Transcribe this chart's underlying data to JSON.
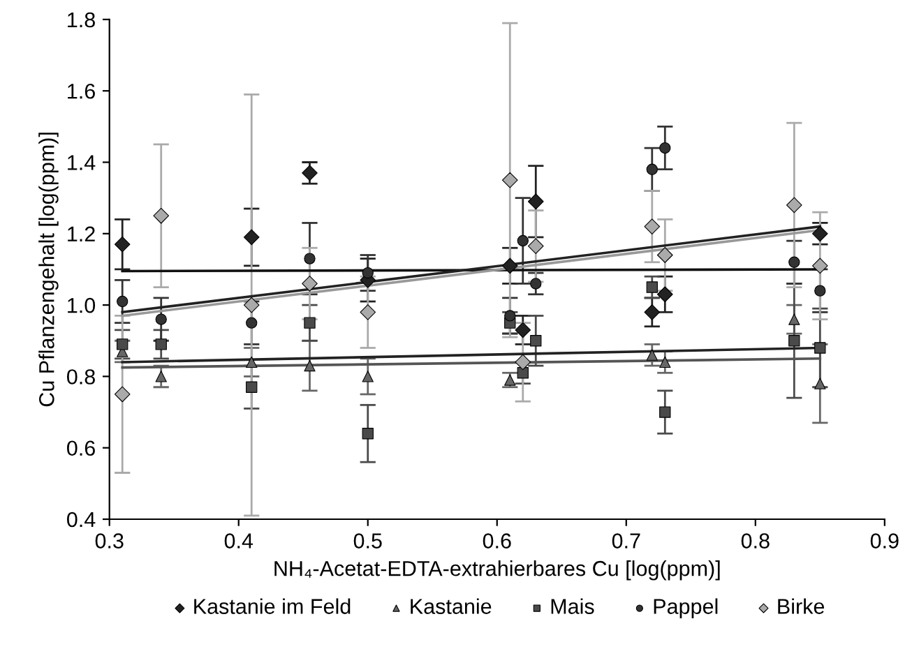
{
  "chart_data": {
    "type": "scatter",
    "xlabel": "NH₄-Acetat-EDTA-extrahierbares Cu [log(ppm)]",
    "ylabel": "Cu Pflanzengehalt [log(ppm)]",
    "xlim": [
      0.3,
      0.9
    ],
    "ylim": [
      0.4,
      1.8
    ],
    "xticks": [
      0.3,
      0.4,
      0.5,
      0.6,
      0.7,
      0.8,
      0.9
    ],
    "yticks": [
      {
        "value": 0.4,
        "label": "0.4"
      },
      {
        "value": 0.6,
        "label": "0.6"
      },
      {
        "value": 0.8,
        "label": "0.8"
      },
      {
        "value": 1.0,
        "label": "1.0"
      },
      {
        "value": 1.2,
        "label": "1.2"
      },
      {
        "value": 1.4,
        "label": "1.4"
      },
      {
        "value": 1.6,
        "label": "1.6"
      },
      {
        "value": 1.8,
        "label": "1.8"
      }
    ],
    "grid": false,
    "legend": "bottom",
    "series": [
      {
        "name": "Kastanie im Feld",
        "color": "#222222",
        "marker": "diamond",
        "x": [
          0.31,
          0.41,
          0.455,
          0.5,
          0.61,
          0.62,
          0.63,
          0.72,
          0.73,
          0.85
        ],
        "values": [
          1.17,
          1.19,
          1.37,
          1.07,
          1.11,
          0.93,
          1.29,
          0.98,
          1.03,
          1.2
        ],
        "errors": [
          0.07,
          0.08,
          0.03,
          0.06,
          0.05,
          0.04,
          0.1,
          0.04,
          0.05,
          0.03
        ]
      },
      {
        "name": "Kastanie",
        "color": "#666666",
        "marker": "triangle",
        "x": [
          0.31,
          0.34,
          0.41,
          0.455,
          0.5,
          0.61,
          0.72,
          0.73,
          0.83,
          0.85
        ],
        "values": [
          0.87,
          0.8,
          0.84,
          0.83,
          0.8,
          0.79,
          0.86,
          0.84,
          0.96,
          0.78
        ],
        "errors": [
          0.03,
          0.03,
          0.04,
          0.07,
          0.05,
          0.02,
          0.03,
          0.03,
          0.04,
          0.11
        ]
      },
      {
        "name": "Mais",
        "color": "#4a4a4a",
        "marker": "square",
        "x": [
          0.31,
          0.34,
          0.41,
          0.455,
          0.5,
          0.61,
          0.62,
          0.63,
          0.72,
          0.73,
          0.83,
          0.85
        ],
        "values": [
          0.89,
          0.89,
          0.77,
          0.95,
          0.64,
          0.95,
          0.81,
          0.9,
          1.05,
          0.7,
          0.9,
          0.88
        ],
        "errors": [
          0.04,
          0.04,
          0.06,
          0.05,
          0.08,
          0.03,
          0.03,
          0.07,
          0.03,
          0.06,
          0.16,
          0.11
        ]
      },
      {
        "name": "Pappel",
        "color": "#333333",
        "marker": "circle",
        "x": [
          0.31,
          0.34,
          0.41,
          0.455,
          0.5,
          0.61,
          0.62,
          0.63,
          0.72,
          0.73,
          0.83,
          0.85
        ],
        "values": [
          1.01,
          0.96,
          0.95,
          1.13,
          1.09,
          0.97,
          1.18,
          1.06,
          1.38,
          1.44,
          1.12,
          1.04
        ],
        "errors": [
          0.06,
          0.06,
          0.06,
          0.1,
          0.05,
          0.05,
          0.12,
          0.03,
          0.06,
          0.06,
          0.06,
          0.06
        ]
      },
      {
        "name": "Birke",
        "color": "#aaaaaa",
        "marker": "diamond",
        "x": [
          0.31,
          0.34,
          0.41,
          0.455,
          0.5,
          0.61,
          0.62,
          0.63,
          0.72,
          0.73,
          0.83,
          0.85
        ],
        "values": [
          0.75,
          1.25,
          1.0,
          1.06,
          0.98,
          1.35,
          0.84,
          1.165,
          1.22,
          1.14,
          1.28,
          1.11
        ],
        "errors": [
          0.22,
          0.2,
          0.59,
          0.1,
          0.1,
          0.44,
          0.11,
          0.1,
          0.1,
          0.1,
          0.23,
          0.15
        ]
      },
      {
        "type": "line",
        "color": "#111111",
        "x": [
          0.31,
          0.85
        ],
        "values": [
          1.095,
          1.1
        ]
      },
      {
        "type": "line",
        "color": "#222222",
        "x": [
          0.31,
          0.85
        ],
        "values": [
          0.98,
          1.22
        ]
      },
      {
        "type": "line",
        "color": "#999999",
        "x": [
          0.31,
          0.85
        ],
        "values": [
          0.97,
          1.21
        ]
      },
      {
        "type": "line",
        "color": "#222222",
        "x": [
          0.31,
          0.85
        ],
        "values": [
          0.84,
          0.88
        ]
      },
      {
        "type": "line",
        "color": "#555555",
        "x": [
          0.31,
          0.85
        ],
        "values": [
          0.825,
          0.85
        ]
      }
    ]
  }
}
